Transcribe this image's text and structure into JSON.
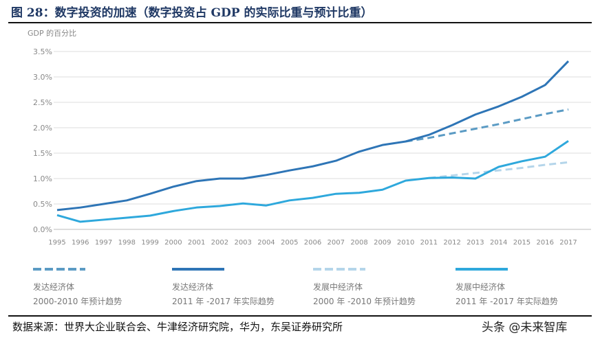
{
  "title": "图 28：数字投资的加速（数字投资占 GDP 的实际比重与预计比重）",
  "source": "数据来源：世界大企业联合会、牛津经济研究院，华为，东吴证券研究所",
  "watermark": "头条 @未来智库",
  "chart_data": {
    "type": "line",
    "ylabel": "GDP 的百分比",
    "ylim": [
      0,
      3.5
    ],
    "yticks": [
      "0.0%",
      "0.5%",
      "1.0%",
      "1.5%",
      "2.0%",
      "2.5%",
      "3.0%",
      "3.5%"
    ],
    "grid": true,
    "legend_position": "bottom",
    "x": [
      1995,
      1996,
      1997,
      1998,
      1999,
      2000,
      2001,
      2002,
      2003,
      2004,
      2005,
      2006,
      2007,
      2008,
      2009,
      2010,
      2011,
      2012,
      2013,
      2014,
      2015,
      2016,
      2017
    ],
    "series": [
      {
        "name": "发达经济体 2000-2010 年预计趋势",
        "color": "#5b9bc4",
        "dashed": true,
        "x": [
          2010,
          2011,
          2012,
          2013,
          2014,
          2015,
          2016,
          2017
        ],
        "values": [
          1.73,
          1.8,
          1.89,
          1.98,
          2.07,
          2.17,
          2.27,
          2.36
        ]
      },
      {
        "name": "发达经济体 2011 年 -2017 年实际趋势",
        "color": "#2e75b6",
        "dashed": false,
        "values": [
          0.38,
          0.43,
          0.5,
          0.57,
          0.7,
          0.84,
          0.95,
          1.0,
          1.0,
          1.07,
          1.16,
          1.24,
          1.35,
          1.53,
          1.66,
          1.73,
          1.86,
          2.05,
          2.26,
          2.42,
          2.61,
          2.84,
          3.31
        ]
      },
      {
        "name": "发展中经济体 2000 年 -2010 年预计趋势",
        "color": "#b4d5ea",
        "dashed": true,
        "x": [
          2011,
          2012,
          2013,
          2014,
          2015,
          2016,
          2017
        ],
        "values": [
          1.01,
          1.06,
          1.11,
          1.16,
          1.21,
          1.27,
          1.32
        ]
      },
      {
        "name": "发展中经济体 2011 年 -2017 年实际趋势",
        "color": "#2ea8dc",
        "dashed": false,
        "values": [
          0.28,
          0.15,
          0.19,
          0.23,
          0.27,
          0.36,
          0.43,
          0.46,
          0.51,
          0.47,
          0.57,
          0.62,
          0.7,
          0.72,
          0.78,
          0.96,
          1.01,
          1.02,
          1.0,
          1.23,
          1.34,
          1.43,
          1.74
        ]
      }
    ]
  },
  "legend": [
    {
      "line1": "发达经济体",
      "line2": "2000-2010 年预计趋势"
    },
    {
      "line1": "发达经济体",
      "line2": "2011 年 -2017 年实际趋势"
    },
    {
      "line1": "发展中经济体",
      "line2": "2000 年 -2010 年预计趋势"
    },
    {
      "line1": "发展中经济体",
      "line2": "2011 年 -2017 年实际趋势"
    }
  ]
}
